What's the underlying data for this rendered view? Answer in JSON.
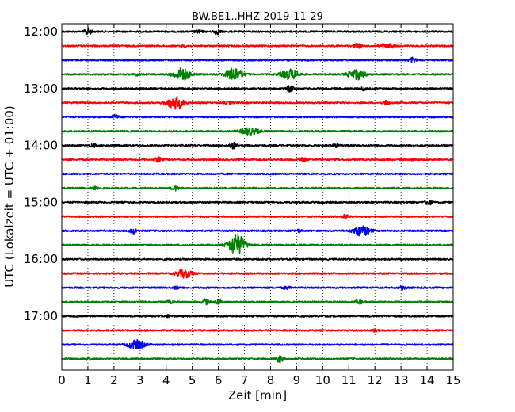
{
  "chart_data": {
    "type": "line",
    "title": "BW.BE1..HHZ 2019-11-29",
    "xlabel": "Zeit  [min]",
    "ylabel": "UTC (Lokalzeit = UTC + 01:00)",
    "xlim": [
      0,
      15
    ],
    "x_ticks": [
      0,
      1,
      2,
      3,
      4,
      5,
      6,
      7,
      8,
      9,
      10,
      11,
      12,
      13,
      14,
      15
    ],
    "y_ticks": [
      "12:00",
      "13:00",
      "14:00",
      "15:00",
      "16:00",
      "17:00"
    ],
    "grid": "vertical dotted lines at each minute",
    "trace_colors": [
      "#000000",
      "#ff0000",
      "#0000ff",
      "#008000"
    ],
    "traces": [
      {
        "start": "12:00",
        "events": [
          {
            "t": 1.0,
            "amp": 0.45
          },
          {
            "t": 5.25,
            "amp": 0.25
          },
          {
            "t": 5.95,
            "amp": 0.35
          }
        ]
      },
      {
        "start": "12:15",
        "events": [
          {
            "t": 4.7,
            "amp": 0.15
          },
          {
            "t": 11.35,
            "amp": 0.35
          },
          {
            "t": 12.3,
            "amp": 0.3
          },
          {
            "t": 12.6,
            "amp": 0.25
          }
        ]
      },
      {
        "start": "12:30",
        "events": [
          {
            "t": 13.45,
            "amp": 0.3
          }
        ]
      },
      {
        "start": "12:45",
        "events": [
          {
            "t": 4.6,
            "amp": 0.85
          },
          {
            "t": 6.6,
            "amp": 0.9
          },
          {
            "t": 8.75,
            "amp": 0.7
          },
          {
            "t": 11.3,
            "amp": 0.7
          },
          {
            "t": 2.9,
            "amp": 0.15
          }
        ]
      },
      {
        "start": "13:00",
        "events": [
          {
            "t": 8.75,
            "amp": 0.4
          },
          {
            "t": 11.6,
            "amp": 0.25
          }
        ]
      },
      {
        "start": "13:15",
        "events": [
          {
            "t": 4.35,
            "amp": 0.9
          },
          {
            "t": 6.4,
            "amp": 0.15
          },
          {
            "t": 12.45,
            "amp": 0.3
          }
        ]
      },
      {
        "start": "13:30",
        "events": [
          {
            "t": 2.05,
            "amp": 0.3
          }
        ]
      },
      {
        "start": "13:45",
        "events": [
          {
            "t": 7.2,
            "amp": 0.55
          }
        ]
      },
      {
        "start": "14:00",
        "events": [
          {
            "t": 1.2,
            "amp": 0.2
          },
          {
            "t": 6.55,
            "amp": 0.45
          },
          {
            "t": 10.5,
            "amp": 0.2
          }
        ]
      },
      {
        "start": "14:15",
        "events": [
          {
            "t": 3.7,
            "amp": 0.3
          },
          {
            "t": 9.25,
            "amp": 0.3
          },
          {
            "t": 13.5,
            "amp": 0.15
          }
        ]
      },
      {
        "start": "14:30",
        "events": []
      },
      {
        "start": "14:45",
        "events": [
          {
            "t": 1.3,
            "amp": 0.15
          },
          {
            "t": 4.35,
            "amp": 0.3
          }
        ]
      },
      {
        "start": "15:00",
        "events": [
          {
            "t": 14.05,
            "amp": 0.35
          }
        ]
      },
      {
        "start": "15:15",
        "events": [
          {
            "t": 10.85,
            "amp": 0.3
          }
        ]
      },
      {
        "start": "15:30",
        "events": [
          {
            "t": 2.75,
            "amp": 0.4
          },
          {
            "t": 9.05,
            "amp": 0.2
          },
          {
            "t": 11.5,
            "amp": 0.7
          }
        ]
      },
      {
        "start": "15:45",
        "events": [
          {
            "t": 6.7,
            "amp": 1.5
          }
        ]
      },
      {
        "start": "16:00",
        "events": []
      },
      {
        "start": "16:15",
        "events": [
          {
            "t": 4.7,
            "amp": 0.55
          }
        ]
      },
      {
        "start": "16:30",
        "events": [
          {
            "t": 4.4,
            "amp": 0.2
          },
          {
            "t": 8.6,
            "amp": 0.2
          },
          {
            "t": 13.05,
            "amp": 0.2
          }
        ]
      },
      {
        "start": "16:45",
        "events": [
          {
            "t": 4.15,
            "amp": 0.15
          },
          {
            "t": 5.5,
            "amp": 0.35
          },
          {
            "t": 6.0,
            "amp": 0.35
          },
          {
            "t": 11.4,
            "amp": 0.3
          }
        ]
      },
      {
        "start": "17:00",
        "events": [
          {
            "t": 4.1,
            "amp": 0.15
          }
        ]
      },
      {
        "start": "17:15",
        "events": [
          {
            "t": 12.0,
            "amp": 0.15
          }
        ]
      },
      {
        "start": "17:30",
        "events": [
          {
            "t": 2.85,
            "amp": 0.6
          }
        ]
      },
      {
        "start": "17:45",
        "events": [
          {
            "t": 1.0,
            "amp": 0.2
          },
          {
            "t": 8.35,
            "amp": 0.45
          }
        ]
      }
    ]
  }
}
